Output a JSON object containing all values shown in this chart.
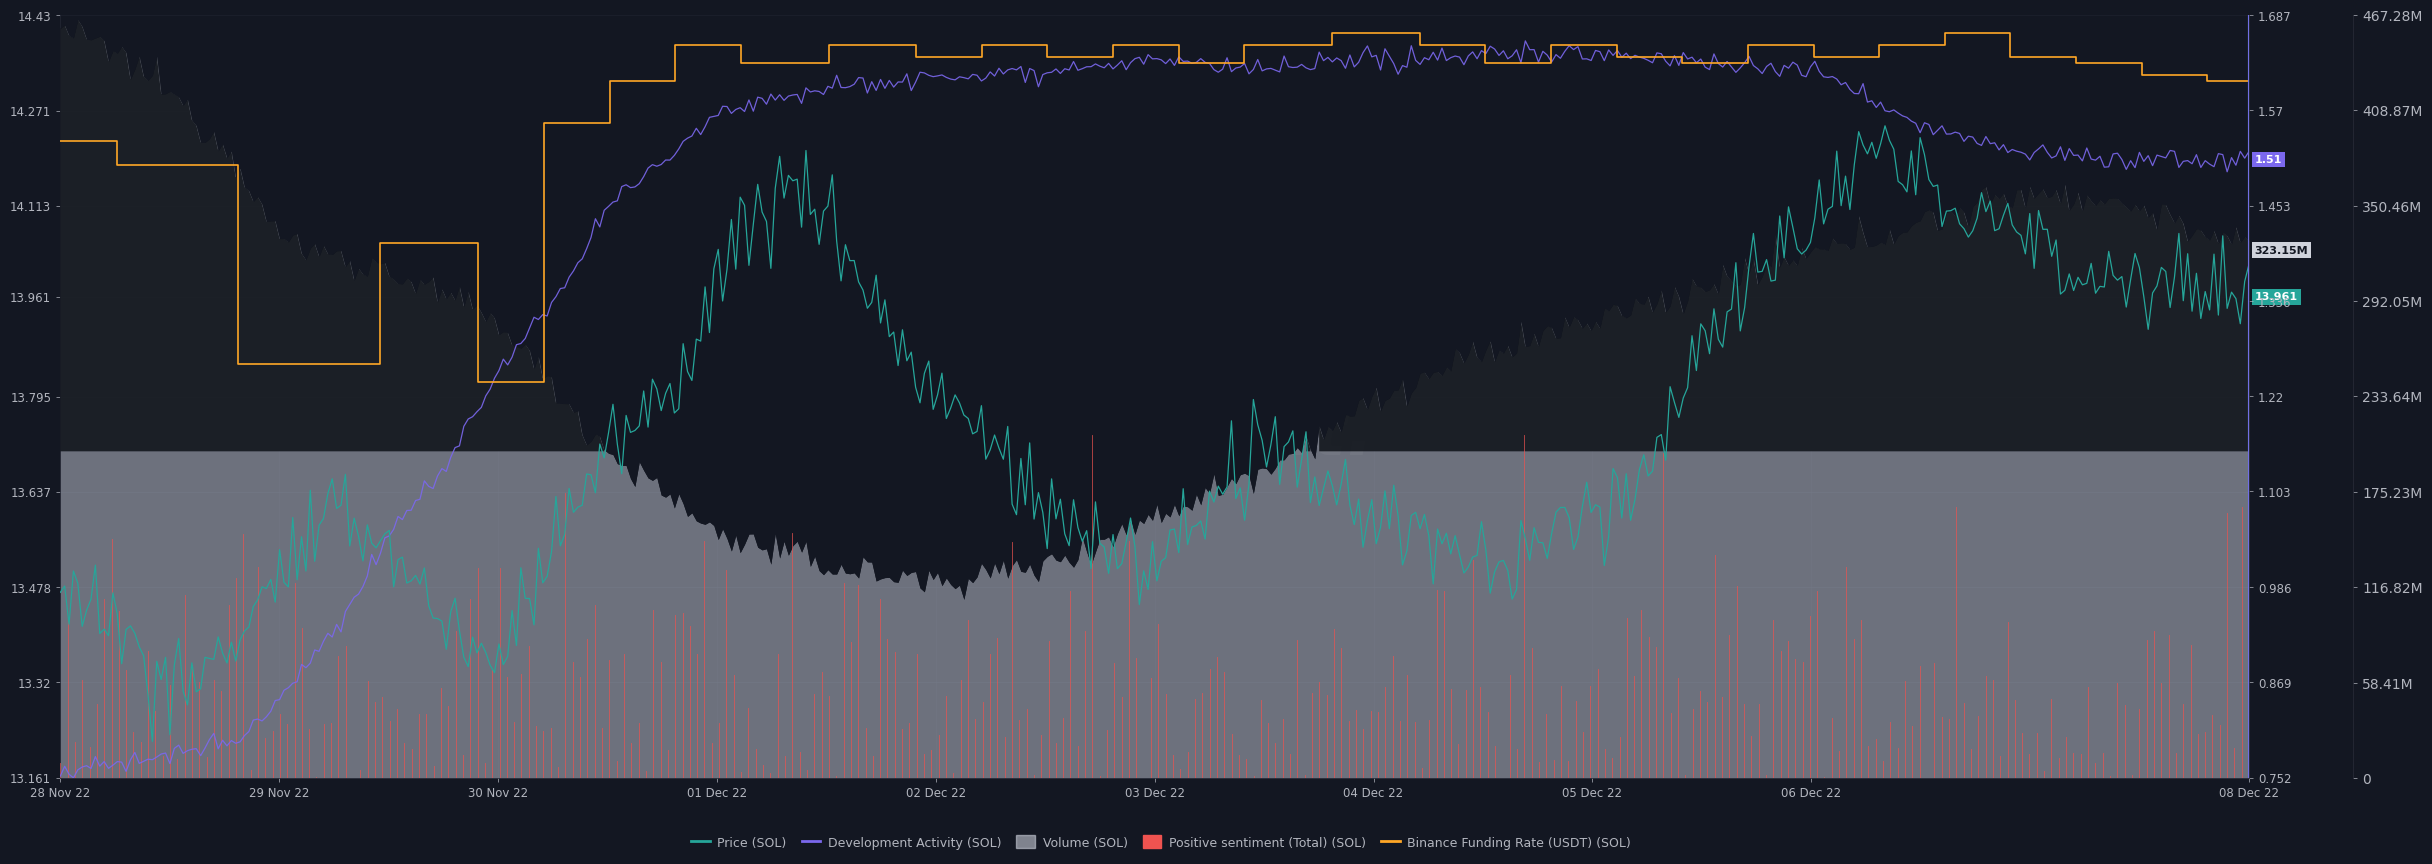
{
  "background_color": "#131722",
  "panel_bg": "#181c27",
  "text_color": "#b2b5be",
  "grid_color": "#1e2535",
  "price_ylim": [
    13.161,
    14.43
  ],
  "dev_ylim": [
    0.752,
    1.687
  ],
  "vol_ylim": [
    0,
    467280000
  ],
  "price_ticks": [
    13.161,
    13.32,
    13.478,
    13.637,
    13.795,
    13.961,
    14.113,
    14.271,
    14.43
  ],
  "dev_ticks": [
    0.752,
    0.869,
    0.986,
    1.103,
    1.22,
    1.336,
    1.453,
    1.57,
    1.687
  ],
  "vol_ticks": [
    0,
    58410000,
    116820000,
    175230000,
    233640000,
    292050000,
    350460000,
    408870000,
    467280000
  ],
  "vol_tick_labels": [
    "0",
    "58.41M",
    "116.82M",
    "175.23M",
    "233.64M",
    "292.05M",
    "350.46M",
    "408.87M",
    "467.28M"
  ],
  "price_current": 13.961,
  "dev_current": 1.51,
  "vol_current": 323150000,
  "x_tick_labels": [
    "28 Nov 22",
    "29 Nov 22",
    "30 Nov 22",
    "01 Dec 22",
    "02 Dec 22",
    "03 Dec 22",
    "04 Dec 22",
    "05 Dec 22",
    "06 Dec 22",
    "08 Dec 22"
  ],
  "x_tick_positions": [
    0,
    1,
    2,
    3,
    4,
    5,
    6,
    7,
    8,
    10
  ],
  "vol_color": "#c8ccd8",
  "vol_dark_color": "#2a2d3a",
  "price_color": "#26a69a",
  "dev_color": "#7b68ee",
  "sentiment_color": "#ef5350",
  "funding_color": "#ffa726",
  "watermark_color": "#ffffff"
}
